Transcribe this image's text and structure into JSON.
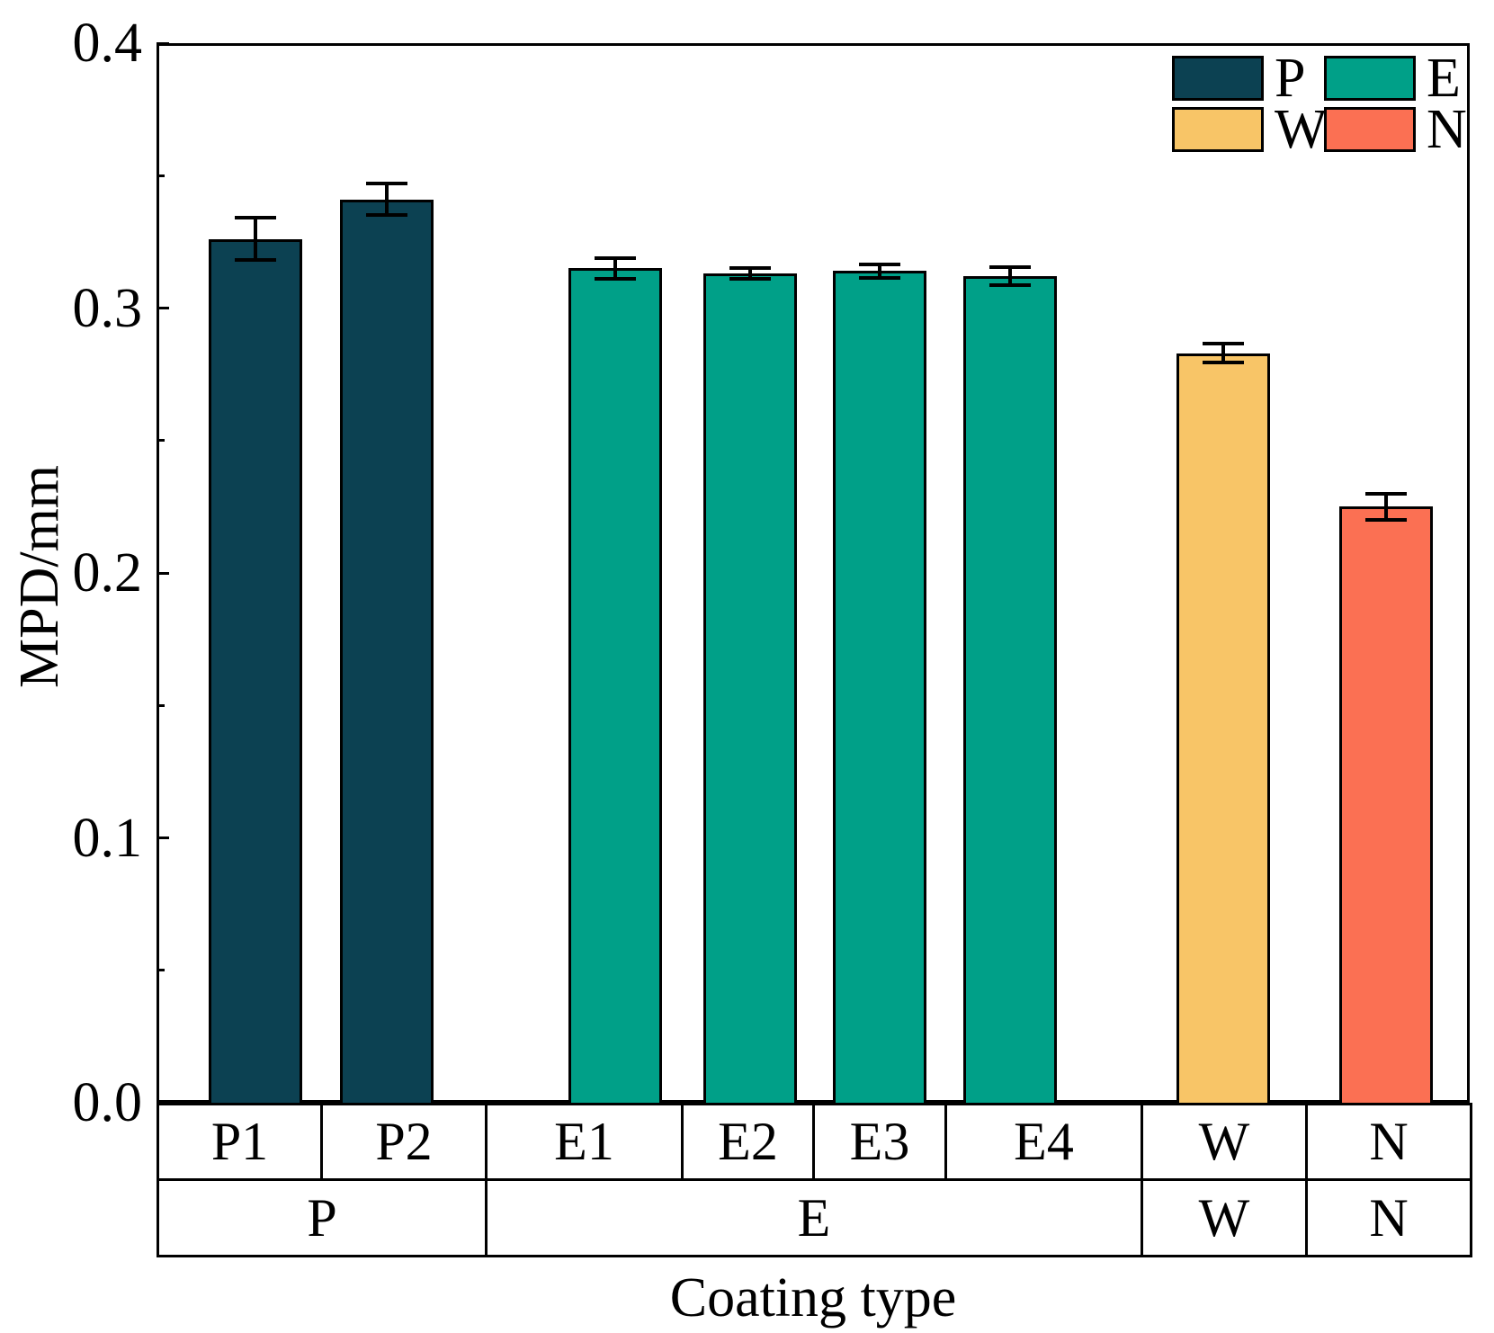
{
  "figure": {
    "background": "#ffffff",
    "axis_color": "#000000"
  },
  "chart_data": {
    "type": "bar",
    "title": "",
    "xlabel": "Coating type",
    "ylabel": "MPD/mm",
    "ylim": [
      0.0,
      0.4
    ],
    "yticks_major": [
      0.0,
      0.1,
      0.2,
      0.3,
      0.4
    ],
    "ytick_labels": [
      "0.0",
      "0.1",
      "0.2",
      "0.3",
      "0.4"
    ],
    "yticks_minor": [
      0.05,
      0.15,
      0.25,
      0.35
    ],
    "grid": false,
    "legend_position": "top-right",
    "categories": [
      "P1",
      "P2",
      "E1",
      "E2",
      "E3",
      "E4",
      "W",
      "N"
    ],
    "bars": [
      {
        "label": "P1",
        "group": "P",
        "value": 0.326,
        "error": 0.008,
        "color": "#0c4152"
      },
      {
        "label": "P2",
        "group": "P",
        "value": 0.341,
        "error": 0.006,
        "color": "#0c4152"
      },
      {
        "label": "E1",
        "group": "E",
        "value": 0.315,
        "error": 0.004,
        "color": "#00a088"
      },
      {
        "label": "E2",
        "group": "E",
        "value": 0.313,
        "error": 0.002,
        "color": "#00a088"
      },
      {
        "label": "E3",
        "group": "E",
        "value": 0.314,
        "error": 0.0025,
        "color": "#00a088"
      },
      {
        "label": "E4",
        "group": "E",
        "value": 0.312,
        "error": 0.0035,
        "color": "#00a088"
      },
      {
        "label": "W",
        "group": "W",
        "value": 0.283,
        "error": 0.0035,
        "color": "#f8c567"
      },
      {
        "label": "N",
        "group": "N",
        "value": 0.225,
        "error": 0.005,
        "color": "#fb7053"
      }
    ],
    "group_row": [
      {
        "label": "P",
        "span": 2
      },
      {
        "label": "E",
        "span": 4
      },
      {
        "label": "W",
        "span": 1
      },
      {
        "label": "N",
        "span": 1
      }
    ],
    "legend": [
      {
        "label": "P",
        "color": "#0c4152"
      },
      {
        "label": "E",
        "color": "#00a088"
      },
      {
        "label": "W",
        "color": "#f8c567"
      },
      {
        "label": "N",
        "color": "#fb7053"
      }
    ]
  }
}
